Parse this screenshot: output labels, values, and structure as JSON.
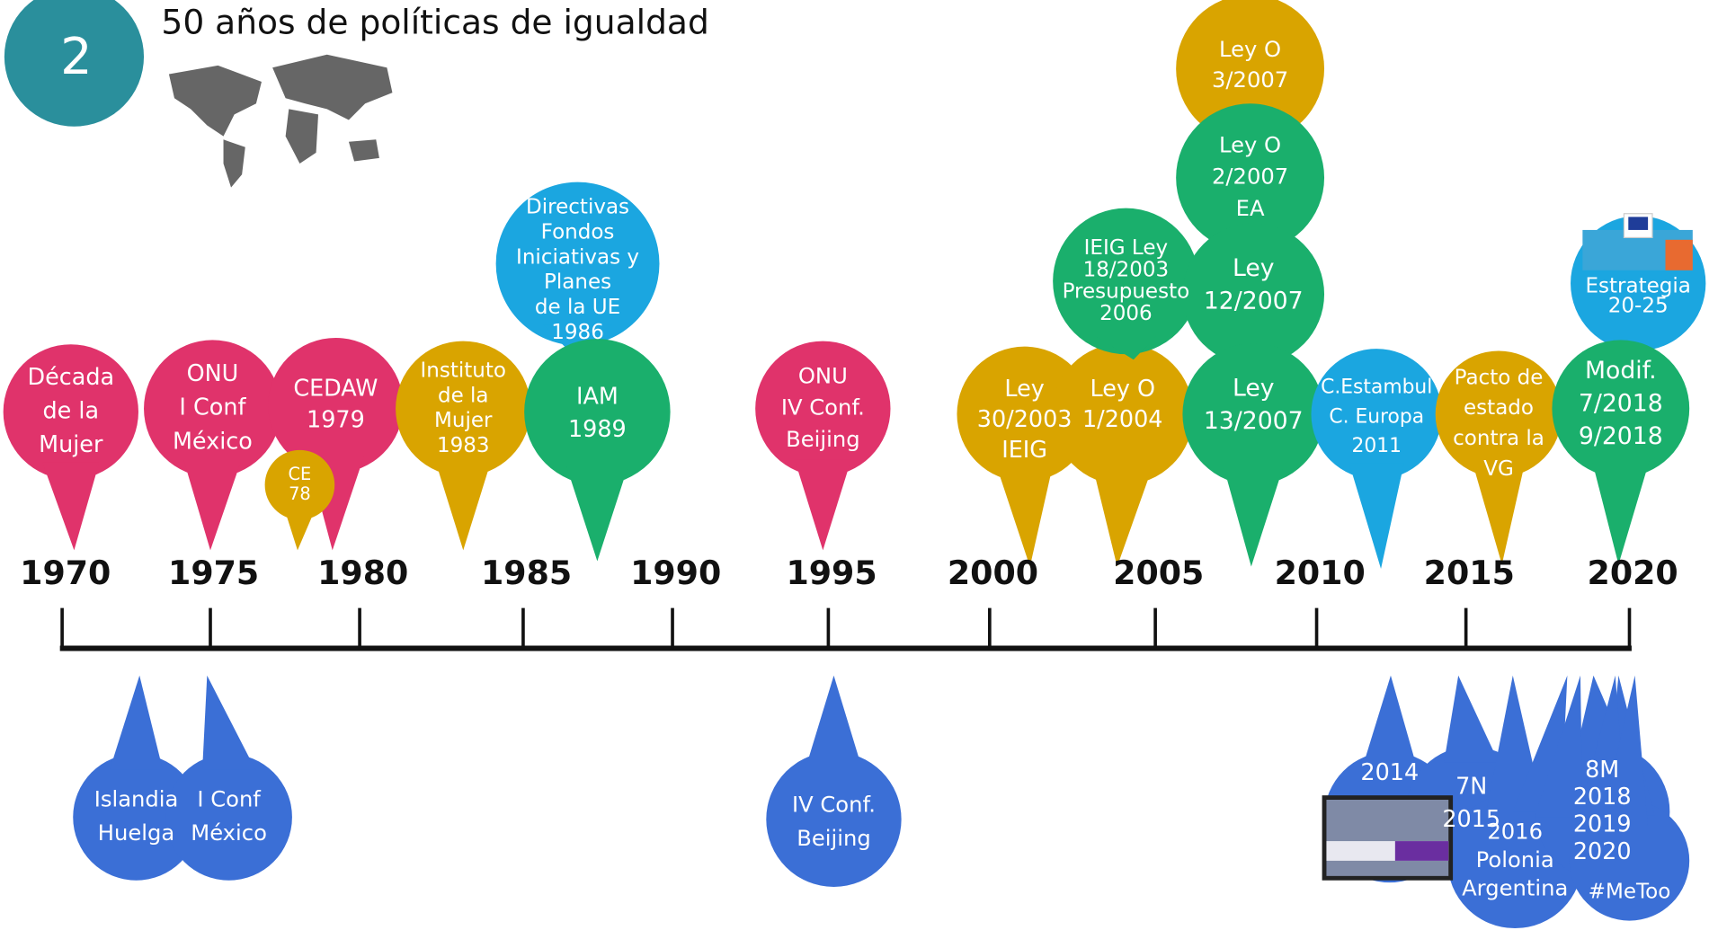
{
  "badge": "2",
  "title": "50 años de políticas de igualdad",
  "years": [
    1970,
    1975,
    1980,
    1985,
    1990,
    1995,
    2000,
    2005,
    2010,
    2015,
    2020
  ],
  "events_above": [
    {
      "lines": [
        "Década",
        "de la",
        "Mujer"
      ]
    },
    {
      "lines": [
        "ONU",
        "I Conf",
        "México"
      ]
    },
    {
      "lines": [
        "CEDAW",
        "1979"
      ]
    },
    {
      "lines": [
        "CE",
        "78"
      ]
    },
    {
      "lines": [
        "Instituto",
        "de la",
        "Mujer",
        "1983"
      ]
    },
    {
      "lines": [
        "Directivas",
        "Fondos",
        "Iniciativas y",
        "Planes",
        "de la UE",
        "1986"
      ]
    },
    {
      "lines": [
        "IAM",
        "1989"
      ]
    },
    {
      "lines": [
        "ONU",
        "IV Conf.",
        "Beijing"
      ]
    },
    {
      "lines": [
        "Ley",
        "30/2003",
        "IEIG"
      ]
    },
    {
      "lines": [
        "Ley O",
        "1/2004"
      ]
    },
    {
      "lines": [
        "IEIG Ley",
        "18/2003",
        "Presupuesto",
        "2006"
      ]
    },
    {
      "lines": [
        "Ley O",
        "3/2007"
      ]
    },
    {
      "lines": [
        "Ley O",
        "2/2007",
        "EA"
      ]
    },
    {
      "lines": [
        "Ley",
        "12/2007"
      ]
    },
    {
      "lines": [
        "Ley",
        "13/2007"
      ]
    },
    {
      "lines": [
        "C.Estambul",
        "C. Europa",
        "2011"
      ]
    },
    {
      "lines": [
        "Pacto de",
        "estado",
        "contra la",
        "VG"
      ]
    },
    {
      "lines": [
        "Estrategia",
        "20-25"
      ]
    },
    {
      "lines": [
        "Modif.",
        "7/2018",
        "9/2018"
      ]
    }
  ],
  "events_below": [
    {
      "lines": [
        "Islandia",
        "Huelga"
      ]
    },
    {
      "lines": [
        "I Conf",
        "México"
      ]
    },
    {
      "lines": [
        "IV Conf.",
        "Beijing"
      ]
    },
    {
      "lines": [
        "2014"
      ]
    },
    {
      "lines": [
        "7N",
        "2015"
      ]
    },
    {
      "lines": [
        "2016",
        "Polonia",
        "Argentina"
      ]
    },
    {
      "lines": [
        "8M",
        "2018",
        "2019",
        "2020"
      ]
    },
    {
      "lines": [
        "#MeToo"
      ]
    }
  ]
}
